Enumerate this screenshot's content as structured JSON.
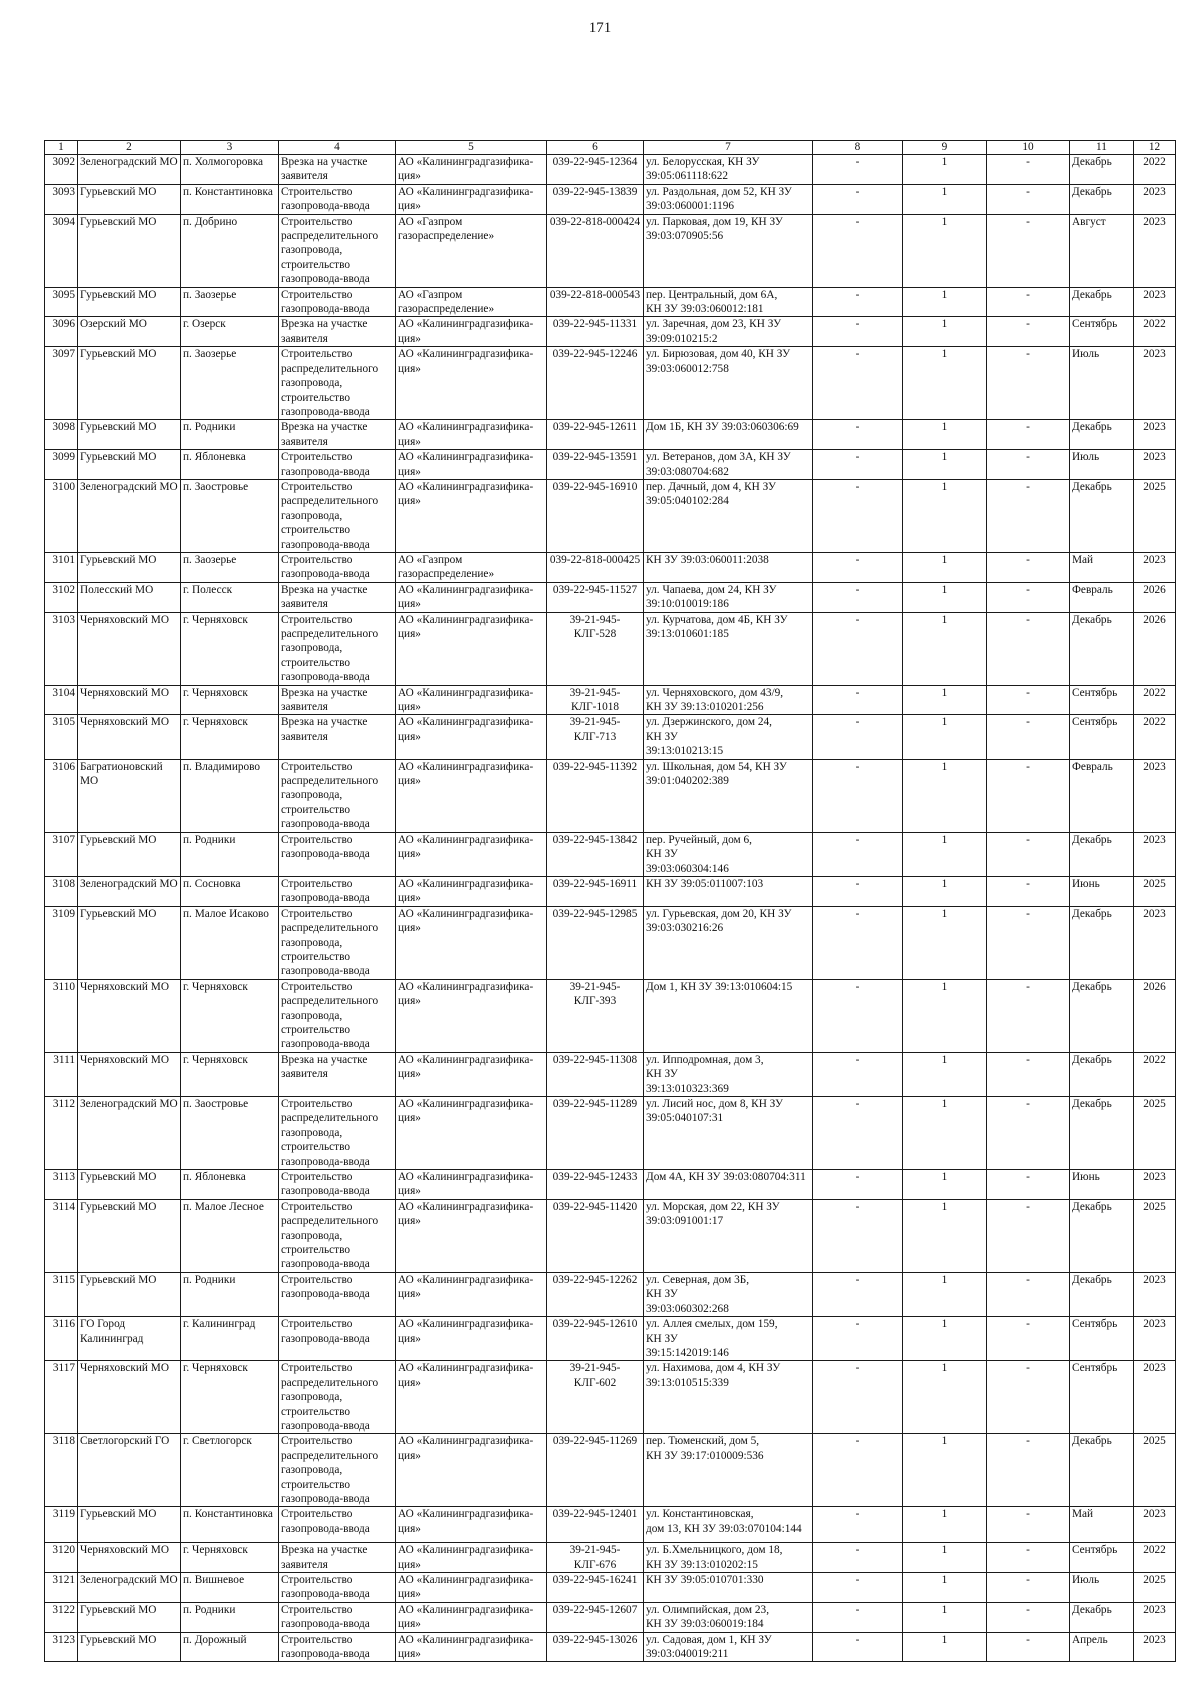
{
  "page_number": "171",
  "table": {
    "headers": [
      "1",
      "2",
      "3",
      "4",
      "5",
      "6",
      "7",
      "8",
      "9",
      "10",
      "11",
      "12"
    ],
    "rows": [
      [
        "3092",
        "Зеленоградский МО",
        "п. Холмогоровка",
        "Врезка на участке заявителя",
        "АО «Калининградгазифика-ция»",
        "039-22-945-12364",
        "ул. Белорусская, КН ЗУ\n39:05:061118:622",
        "-",
        "1",
        "-",
        "Декабрь",
        "2022"
      ],
      [
        "3093",
        "Гурьевский МО",
        "п. Константиновка",
        "Строительство газопровода-ввода",
        "АО «Калининградгазифика-ция»",
        "039-22-945-13839",
        "ул. Раздольная, дом 52, КН ЗУ\n39:03:060001:1196",
        "-",
        "1",
        "-",
        "Декабрь",
        "2023"
      ],
      [
        "3094",
        "Гурьевский МО",
        "п. Добрино",
        "Строительство распределительного газопровода, строительство газопровода-ввода",
        "АО «Газпром газораспределение»",
        "039-22-818-000424",
        "ул. Парковая, дом 19, КН ЗУ\n39:03:070905:56",
        "-",
        "1",
        "-",
        "Август",
        "2023"
      ],
      [
        "3095",
        "Гурьевский МО",
        "п. Заозерье",
        "Строительство газопровода-ввода",
        "АО «Газпром газораспределение»",
        "039-22-818-000543",
        "пер. Центральный, дом 6А,\nКН ЗУ 39:03:060012:181",
        "-",
        "1",
        "-",
        "Декабрь",
        "2023"
      ],
      [
        "3096",
        "Озерский МО",
        "г. Озерск",
        "Врезка на участке заявителя",
        "АО «Калининградгазифика-ция»",
        "039-22-945-11331",
        "ул. Заречная, дом 23, КН ЗУ\n39:09:010215:2",
        "-",
        "1",
        "-",
        "Сентябрь",
        "2022"
      ],
      [
        "3097",
        "Гурьевский МО",
        "п. Заозерье",
        "Строительство распределительного газопровода, строительство газопровода-ввода",
        "АО «Калининградгазифика-ция»",
        "039-22-945-12246",
        "ул. Бирюзовая, дом 40, КН ЗУ\n39:03:060012:758",
        "-",
        "1",
        "-",
        "Июль",
        "2023"
      ],
      [
        "3098",
        "Гурьевский МО",
        "п. Родники",
        "Врезка на участке заявителя",
        "АО «Калининградгазифика-ция»",
        "039-22-945-12611",
        "Дом 1Б, КН ЗУ 39:03:060306:69",
        "-",
        "1",
        "-",
        "Декабрь",
        "2023"
      ],
      [
        "3099",
        "Гурьевский МО",
        "п. Яблоневка",
        "Строительство газопровода-ввода",
        "АО «Калининградгазифика-ция»",
        "039-22-945-13591",
        "ул. Ветеранов, дом 3А, КН ЗУ\n39:03:080704:682",
        "-",
        "1",
        "-",
        "Июль",
        "2023"
      ],
      [
        "3100",
        "Зеленоградский МО",
        "п. Заостровье",
        "Строительство распределительного газопровода, строительство газопровода-ввода",
        "АО «Калининградгазифика-ция»",
        "039-22-945-16910",
        "пер. Дачный, дом 4, КН ЗУ\n39:05:040102:284",
        "-",
        "1",
        "-",
        "Декабрь",
        "2025"
      ],
      [
        "3101",
        "Гурьевский МО",
        "п. Заозерье",
        "Строительство газопровода-ввода",
        "АО «Газпром газораспределение»",
        "039-22-818-000425",
        "КН ЗУ 39:03:060011:2038",
        "-",
        "1",
        "-",
        "Май",
        "2023"
      ],
      [
        "3102",
        "Полесский МО",
        "г. Полесск",
        "Врезка на участке заявителя",
        "АО «Калининградгазифика-ция»",
        "039-22-945-11527",
        "ул. Чапаева, дом 24, КН ЗУ\n39:10:010019:186",
        "-",
        "1",
        "-",
        "Февраль",
        "2026"
      ],
      [
        "3103",
        "Черняховский МО",
        "г. Черняховск",
        "Строительство распределительного газопровода, строительство газопровода-ввода",
        "АО «Калининградгазифика-ция»",
        "39-21-945-КЛГ-528",
        "ул. Курчатова, дом 4Б, КН ЗУ\n39:13:010601:185",
        "-",
        "1",
        "-",
        "Декабрь",
        "2026"
      ],
      [
        "3104",
        "Черняховский МО",
        "г. Черняховск",
        "Врезка на участке заявителя",
        "АО «Калининградгазифика-ция»",
        "39-21-945-КЛГ-1018",
        "ул. Черняховского, дом 43/9,\nКН ЗУ 39:13:010201:256",
        "-",
        "1",
        "-",
        "Сентябрь",
        "2022"
      ],
      [
        "3105",
        "Черняховский МО",
        "г. Черняховск",
        "Врезка на участке заявителя",
        "АО «Калининградгазифика-ция»",
        "39-21-945-КЛГ-713",
        "ул. Дзержинского, дом 24,\nКН ЗУ\n39:13:010213:15",
        "-",
        "1",
        "-",
        "Сентябрь",
        "2022"
      ],
      [
        "3106",
        "Багратионовский МО",
        "п. Владимирово",
        "Строительство распределительного газопровода, строительство газопровода-ввода",
        "АО «Калининградгазифика-ция»",
        "039-22-945-11392",
        "ул. Школьная, дом 54, КН ЗУ\n39:01:040202:389",
        "-",
        "1",
        "-",
        "Февраль",
        "2023"
      ],
      [
        "3107",
        "Гурьевский МО",
        "п. Родники",
        "Строительство газопровода-ввода",
        "АО «Калининградгазифика-ция»",
        "039-22-945-13842",
        "пер. Ручейный, дом 6,\nКН ЗУ\n39:03:060304:146",
        "-",
        "1",
        "-",
        "Декабрь",
        "2023"
      ],
      [
        "3108",
        "Зеленоградский МО",
        "п. Сосновка",
        "Строительство газопровода-ввода",
        "АО «Калининградгазифика-ция»",
        "039-22-945-16911",
        "КН ЗУ 39:05:011007:103",
        "-",
        "1",
        "-",
        "Июнь",
        "2025"
      ],
      [
        "3109",
        "Гурьевский МО",
        "п. Малое Исаково",
        "Строительство распределительного газопровода, строительство газопровода-ввода",
        "АО «Калининградгазифика-ция»",
        "039-22-945-12985",
        "ул. Гурьевская, дом 20, КН ЗУ\n39:03:030216:26",
        "-",
        "1",
        "-",
        "Декабрь",
        "2023"
      ],
      [
        "3110",
        "Черняховский МО",
        "г. Черняховск",
        "Строительство распределительного газопровода, строительство газопровода-ввода",
        "АО «Калининградгазифика-ция»",
        "39-21-945-КЛГ-393",
        "Дом 1, КН ЗУ 39:13:010604:15",
        "-",
        "1",
        "-",
        "Декабрь",
        "2026"
      ],
      [
        "3111",
        "Черняховский МО",
        "г. Черняховск",
        "Врезка на участке заявителя",
        "АО «Калининградгазифика-ция»",
        "039-22-945-11308",
        "ул. Ипподромная, дом 3,\nКН ЗУ\n39:13:010323:369",
        "-",
        "1",
        "-",
        "Декабрь",
        "2022"
      ],
      [
        "3112",
        "Зеленоградский МО",
        "п. Заостровье",
        "Строительство распределительного газопровода, строительство газопровода-ввода",
        "АО «Калининградгазифика-ция»",
        "039-22-945-11289",
        "ул. Лисий нос, дом 8, КН ЗУ\n39:05:040107:31",
        "-",
        "1",
        "-",
        "Декабрь",
        "2025"
      ],
      [
        "3113",
        "Гурьевский МО",
        "п. Яблоневка",
        "Строительство газопровода-ввода",
        "АО «Калининградгазифика-ция»",
        "039-22-945-12433",
        "Дом 4А, КН ЗУ 39:03:080704:311",
        "-",
        "1",
        "-",
        "Июнь",
        "2023"
      ],
      [
        "3114",
        "Гурьевский МО",
        "п. Малое Лесное",
        "Строительство распределительного газопровода, строительство газопровода-ввода",
        "АО «Калининградгазифика-ция»",
        "039-22-945-11420",
        "ул. Морская, дом 22, КН ЗУ\n39:03:091001:17",
        "-",
        "1",
        "-",
        "Декабрь",
        "2025"
      ],
      [
        "3115",
        "Гурьевский МО",
        "п. Родники",
        "Строительство газопровода-ввода",
        "АО «Калининградгазифика-ция»",
        "039-22-945-12262",
        "ул. Северная, дом 3Б,\nКН ЗУ\n39:03:060302:268",
        "-",
        "1",
        "-",
        "Декабрь",
        "2023"
      ],
      [
        "3116",
        "ГО Город Калининград",
        "г. Калининград",
        "Строительство газопровода-ввода",
        "АО «Калининградгазифика-ция»",
        "039-22-945-12610",
        "ул. Аллея смелых, дом 159,\nКН ЗУ\n39:15:142019:146",
        "-",
        "1",
        "-",
        "Сентябрь",
        "2023"
      ],
      [
        "3117",
        "Черняховский МО",
        "г. Черняховск",
        "Строительство распределительного газопровода, строительство газопровода-ввода",
        "АО «Калининградгазифика-ция»",
        "39-21-945-КЛГ-602",
        "ул. Нахимова, дом 4, КН ЗУ\n39:13:010515:339",
        "-",
        "1",
        "-",
        "Сентябрь",
        "2023"
      ],
      [
        "3118",
        "Светлогорский ГО",
        "г. Светлогорск",
        "Строительство распределительного газопровода, строительство газопровода-ввода",
        "АО «Калининградгазифика-ция»",
        "039-22-945-11269",
        "пер. Тюменский, дом 5,\nКН ЗУ 39:17:010009:536",
        "-",
        "1",
        "-",
        "Декабрь",
        "2025"
      ],
      [
        "3119",
        "Гурьевский МО",
        "п. Константиновка",
        "Строительство газопровода-ввода",
        "АО «Калининградгазифика-ция»",
        "039-22-945-12401",
        "ул. Константиновская,\nдом 13, КН ЗУ 39:03:070104:144",
        "-",
        "1",
        "-",
        "Май",
        "2023"
      ],
      [
        "3120",
        "Черняховский МО",
        "г. Черняховск",
        "Врезка на участке заявителя",
        "АО «Калининградгазифика-ция»",
        "39-21-945-КЛГ-676",
        "ул. Б.Хмельницкого, дом 18,\nКН ЗУ 39:13:010202:15",
        "-",
        "1",
        "-",
        "Сентябрь",
        "2022"
      ],
      [
        "3121",
        "Зеленоградский МО",
        "п. Вишневое",
        "Строительство газопровода-ввода",
        "АО «Калининградгазифика-ция»",
        "039-22-945-16241",
        "КН ЗУ 39:05:010701:330",
        "-",
        "1",
        "-",
        "Июль",
        "2025"
      ],
      [
        "3122",
        "Гурьевский МО",
        "п. Родники",
        "Строительство газопровода-ввода",
        "АО «Калининградгазифика-ция»",
        "039-22-945-12607",
        "ул. Олимпийская, дом 23,\nКН ЗУ 39:03:060019:184",
        "-",
        "1",
        "-",
        "Декабрь",
        "2023"
      ],
      [
        "3123",
        "Гурьевский МО",
        "п. Дорожный",
        "Строительство газопровода-ввода",
        "АО «Калининградгазифика-ция»",
        "039-22-945-13026",
        "ул. Садовая, дом 1, КН ЗУ\n39:03:040019:211",
        "-",
        "1",
        "-",
        "Апрель",
        "2023"
      ]
    ]
  }
}
